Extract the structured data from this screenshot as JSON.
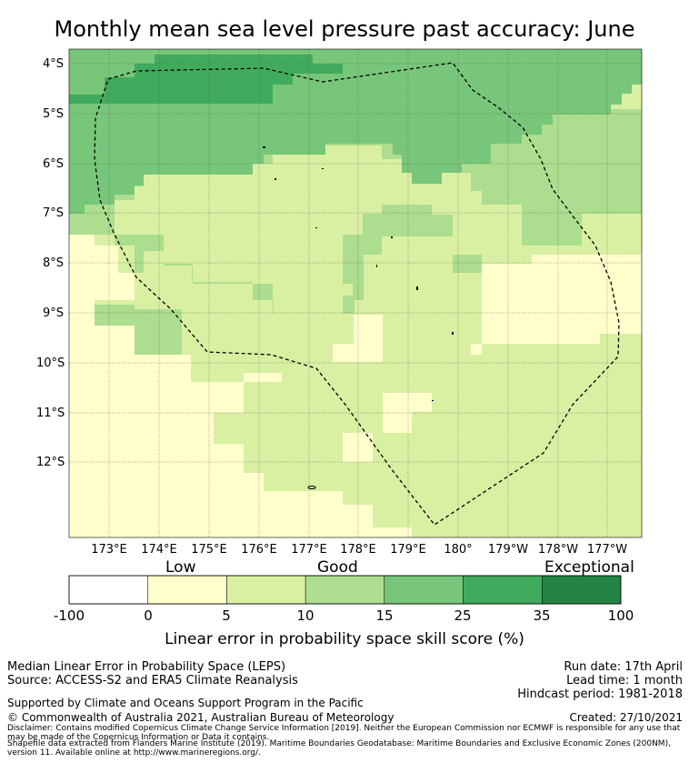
{
  "title": "Monthly mean sea level pressure past accuracy: June",
  "map": {
    "lat_labels": [
      "4°S",
      "5°S",
      "6°S",
      "7°S",
      "8°S",
      "9°S",
      "10°S",
      "11°S",
      "12°S"
    ],
    "lon_labels": [
      "173°E",
      "174°E",
      "175°E",
      "176°E",
      "177°E",
      "178°E",
      "179°E",
      "180°",
      "179°W",
      "178°W",
      "177°W"
    ],
    "eez_boundary": "dashed black line",
    "gridlines": true
  },
  "colorbar": {
    "categories": [
      "Low",
      "Good",
      "Exceptional"
    ],
    "ticks": [
      "-100",
      "0",
      "5",
      "10",
      "15",
      "25",
      "35",
      "100"
    ],
    "colors": [
      "#ffffff",
      "#ffffcc",
      "#d9f0a3",
      "#addd8e",
      "#78c679",
      "#41ab5d",
      "#238443"
    ],
    "label": "Linear error in probability space skill score (%)"
  },
  "info": {
    "left1": "Median Linear Error in Probability Space (LEPS)",
    "left2": "Source: ACCESS-S2 and ERA5 Climate Reanalysis",
    "right1": "Run date: 17th April",
    "right2": "Lead time: 1 month",
    "right3": "Hindcast period: 1981-2018",
    "support": "Supported by Climate and Oceans Support Program in the Pacific",
    "copyright": "© Commonwealth of Australia 2021, Australian Bureau of Meteorology",
    "created": "Created: 27/10/2021",
    "disclaimer1": "Disclaimer: Contains modified Copernicus Climate Change Service Information [2019]. Neither the European Commission nor ECMWF is responsible for any use that may be made of the Copernicus Information or Data it contains.",
    "disclaimer2": "Shapefile data extracted from Flanders Marine Institute (2019). Maritime Boundaries Geodatabase: Maritime Boundaries and Exclusive Economic Zones (200NM), version 11. Available online at http://www.marineregions.org/."
  }
}
